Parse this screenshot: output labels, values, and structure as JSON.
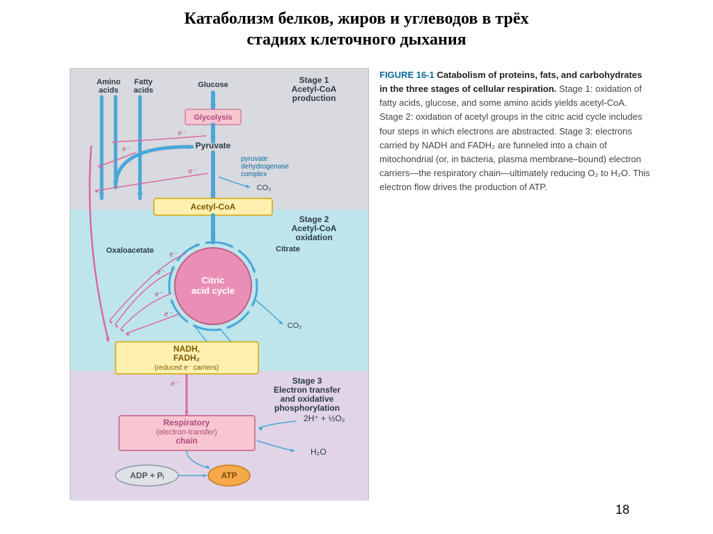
{
  "page": {
    "title_line1": "Катаболизм белков, жиров и углеводов в трёх",
    "title_line2": "стадиях клеточного дыхания",
    "number": "18"
  },
  "caption": {
    "label": "FIGURE 16-1",
    "title": "Catabolism of proteins, fats, and carbohydrates in the three stages of cellular respiration.",
    "body": "Stage 1: oxidation of fatty acids, glucose, and some amino acids yields acetyl-CoA. Stage 2: oxidation of acetyl groups in the citric acid cycle includes four steps in which electrons are abstracted. Stage 3: electrons carried by NADH and FADH₂ are funneled into a chain of mitochondrial (or, in bacteria, plasma membrane–bound) electron carriers—the respiratory chain—ultimately reducing O₂ to H₂O. This electron flow drives the production of ATP."
  },
  "stages": {
    "bg1": "#d9d9e0",
    "bg2": "#bfe5ec",
    "bg3": "#e0d4e6",
    "h1": 202,
    "h2": 232,
    "h3": 186,
    "title1a": "Stage 1",
    "title1b": "Acetyl-CoA",
    "title1c": "production",
    "title2a": "Stage 2",
    "title2b": "Acetyl-CoA",
    "title2c": "oxidation",
    "title3a": "Stage 3",
    "title3b": "Electron transfer",
    "title3c": "and oxidative",
    "title3d": "phosphorylation"
  },
  "nodes": {
    "amino": "Amino\nacids",
    "fatty": "Fatty\nacids",
    "glucose": "Glucose",
    "glycolysis": "Glycolysis",
    "pyruvate": "Pyruvate",
    "pdh1": "pyruvate",
    "pdh2": "dehydrogenase",
    "pdh3": "complex",
    "co2": "CO₂",
    "acetyl": "Acetyl-CoA",
    "oaa": "Oxaloacetate",
    "citrate": "Citrate",
    "cycle1": "Citric",
    "cycle2": "acid cycle",
    "nadh1": "NADH,",
    "nadh2": "FADH₂",
    "nadh3": "(reduced e⁻ carriers)",
    "resp1": "Respiratory",
    "resp2": "(electron-transfer)",
    "resp3": "chain",
    "adp": "ADP + Pᵢ",
    "atp": "ATP",
    "hho": "2H⁺ + ½O₂",
    "h2o": "H₂O",
    "e": "e⁻"
  },
  "colors": {
    "arrow_blue": "#4aa6d6",
    "arrow_pink": "#d86aa0",
    "box_yellow_fill": "#fff0b0",
    "box_yellow_stroke": "#d6a500",
    "box_pink_fill": "#f7c6d0",
    "box_pink_stroke": "#c25e86",
    "circle_pink_fill": "#e98fb5",
    "circle_pink_stroke": "#c25e86",
    "atp_fill": "#f5a94a",
    "atp_stroke": "#c97a20",
    "adp_fill": "#dfe3e8",
    "adp_stroke": "#8a96a3",
    "text_dark": "#2b3a45",
    "text_blue": "#0a6aa0",
    "text_pink": "#b04a7a"
  },
  "layout": {
    "diagram_w": 430,
    "diagram_h": 620,
    "font_label": 12,
    "font_stage_title": 12,
    "font_box": 12
  }
}
